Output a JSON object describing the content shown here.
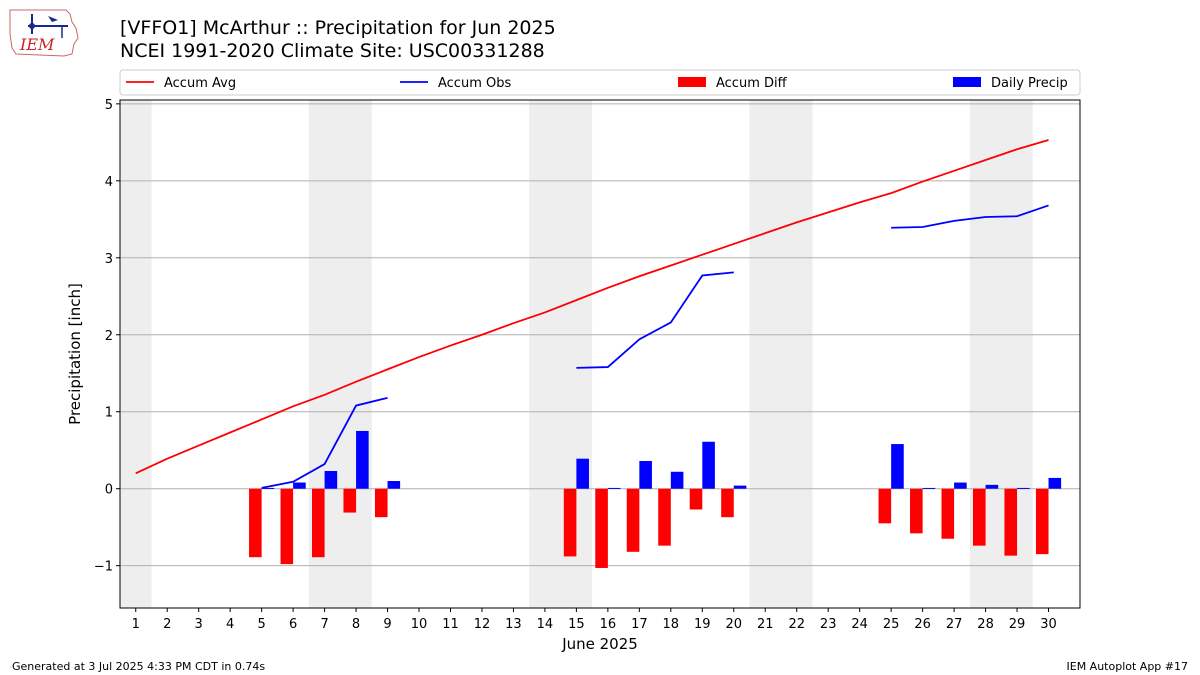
{
  "logo": {
    "text": "IEM"
  },
  "title": {
    "line1": "[VFFO1] McArthur :: Precipitation for Jun 2025",
    "line2": "NCEI 1991-2020 Climate Site: USC00331288"
  },
  "footer": {
    "left": "Generated at 3 Jul 2025 4:33 PM CDT in 0.74s",
    "right": "IEM Autoplot App #17"
  },
  "colors": {
    "accum_avg": "#ff0000",
    "accum_obs": "#0000ff",
    "accum_diff": "#ff0000",
    "daily_precip": "#0000ff",
    "weekend_shade": "#eeeeee"
  },
  "chart_data": {
    "type": "bar",
    "xlabel": "June 2025",
    "ylabel": "Precipitation [inch]",
    "ylim": [
      -1.55,
      5.05
    ],
    "xlim": [
      0.5,
      31.0
    ],
    "yticks": [
      -1,
      0,
      1,
      2,
      3,
      4,
      5
    ],
    "ytick_labels": [
      "−1",
      "0",
      "1",
      "2",
      "3",
      "4",
      "5"
    ],
    "xticks": [
      1,
      2,
      3,
      4,
      5,
      6,
      7,
      8,
      9,
      10,
      11,
      12,
      13,
      14,
      15,
      16,
      17,
      18,
      19,
      20,
      21,
      22,
      23,
      24,
      25,
      26,
      27,
      28,
      29,
      30
    ],
    "grid": true,
    "legend_placement": "top",
    "legend": [
      "Accum Avg",
      "Accum Obs",
      "Accum Diff",
      "Daily Precip"
    ],
    "weekend_shading": [
      [
        0.5,
        1.5
      ],
      [
        6.5,
        8.5
      ],
      [
        13.5,
        15.5
      ],
      [
        20.5,
        22.5
      ],
      [
        27.5,
        29.5
      ]
    ],
    "series": [
      {
        "name": "Accum Avg",
        "kind": "line",
        "x": [
          1,
          2,
          3,
          4,
          5,
          6,
          7,
          8,
          9,
          10,
          11,
          12,
          13,
          14,
          15,
          16,
          17,
          18,
          19,
          20,
          21,
          22,
          23,
          24,
          25,
          26,
          27,
          28,
          29,
          30
        ],
        "values": [
          0.2,
          0.39,
          0.56,
          0.73,
          0.9,
          1.07,
          1.22,
          1.39,
          1.55,
          1.71,
          1.86,
          2.0,
          2.15,
          2.29,
          2.45,
          2.61,
          2.76,
          2.9,
          3.04,
          3.18,
          3.32,
          3.46,
          3.59,
          3.72,
          3.84,
          3.99,
          4.13,
          4.27,
          4.41,
          4.53
        ]
      },
      {
        "name": "Accum Obs",
        "kind": "line",
        "x": [
          5,
          6,
          7,
          8,
          9,
          15,
          16,
          17,
          18,
          19,
          20,
          25,
          26,
          27,
          28,
          29,
          30
        ],
        "values": [
          0.01,
          0.09,
          0.32,
          1.08,
          1.18,
          1.57,
          1.58,
          1.94,
          2.16,
          2.77,
          2.81,
          3.39,
          3.4,
          3.48,
          3.53,
          3.54,
          3.68
        ],
        "segments": [
          [
            5,
            9
          ],
          [
            15,
            20
          ],
          [
            25,
            30
          ]
        ]
      },
      {
        "name": "Accum Diff",
        "kind": "bar",
        "x": [
          5,
          6,
          7,
          8,
          9,
          15,
          16,
          17,
          18,
          19,
          20,
          25,
          26,
          27,
          28,
          29,
          30
        ],
        "values": [
          -0.89,
          -0.98,
          -0.89,
          -0.31,
          -0.37,
          -0.88,
          -1.03,
          -0.82,
          -0.74,
          -0.27,
          -0.37,
          -0.45,
          -0.58,
          -0.65,
          -0.74,
          -0.87,
          -0.85
        ]
      },
      {
        "name": "Daily Precip",
        "kind": "bar",
        "x": [
          5,
          6,
          7,
          8,
          9,
          15,
          16,
          17,
          18,
          19,
          20,
          25,
          26,
          27,
          28,
          29,
          30
        ],
        "values": [
          0.01,
          0.08,
          0.23,
          0.75,
          0.1,
          0.39,
          0.01,
          0.36,
          0.22,
          0.61,
          0.04,
          0.58,
          0.01,
          0.08,
          0.05,
          0.01,
          0.14
        ]
      }
    ]
  }
}
